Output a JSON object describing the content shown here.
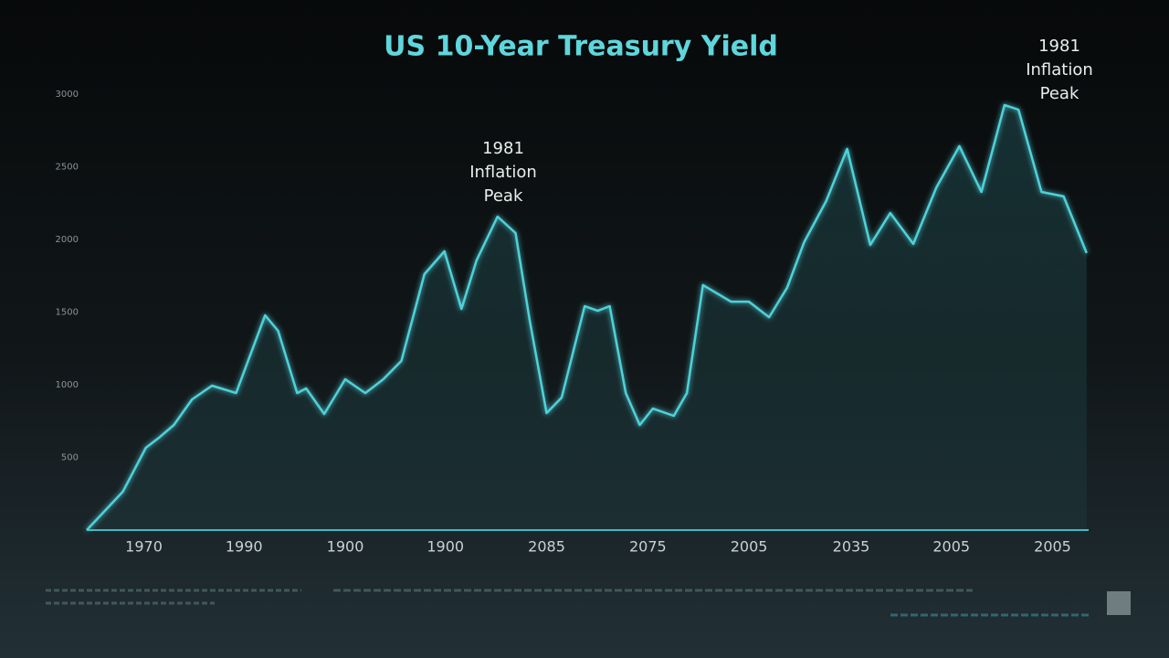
{
  "chart_data": {
    "type": "line",
    "title": "US 10-Year Treasury Yield",
    "annotations": [
      "1981 Inflation Peak",
      "1981 Inflation Peak"
    ],
    "xlim": [
      0,
      100
    ],
    "xticks": [
      {
        "value": 5.7,
        "label": "1970"
      },
      {
        "value": 15.7,
        "label": "1990"
      },
      {
        "value": 25.8,
        "label": "1900"
      },
      {
        "value": 35.8,
        "label": "1900"
      },
      {
        "value": 45.9,
        "label": "2085"
      },
      {
        "value": 56.0,
        "label": "2075"
      },
      {
        "value": 66.1,
        "label": "2005"
      },
      {
        "value": 76.3,
        "label": "2035"
      },
      {
        "value": 86.3,
        "label": "2005"
      },
      {
        "value": 96.4,
        "label": "2005"
      }
    ],
    "ylim": [
      0,
      3000
    ],
    "yticks": [
      500,
      1000,
      1500,
      2000,
      2500,
      3000
    ],
    "grid": false,
    "x": [
      0,
      3.6,
      5.9,
      7.3,
      8.7,
      10.5,
      12.5,
      14.9,
      16.1,
      17.8,
      19.1,
      21.0,
      21.9,
      23.7,
      25.8,
      27.8,
      29.6,
      31.4,
      33.7,
      35.7,
      37.4,
      38.9,
      41.0,
      42.8,
      44.2,
      45.9,
      47.4,
      49.7,
      51.0,
      52.2,
      53.8,
      55.2,
      56.5,
      58.6,
      59.9,
      61.5,
      64.3,
      66.1,
      68.1,
      69.9,
      71.6,
      73.8,
      75.9,
      78.2,
      80.2,
      82.5,
      84.8,
      87.1,
      89.3,
      91.6,
      93.0,
      95.3,
      97.5,
      99.8
    ],
    "series": [
      {
        "color": "#4fd1d9",
        "values": [
          0,
          264,
          566,
          641,
          723,
          899,
          994,
          943,
          1164,
          1478,
          1371,
          943,
          975,
          799,
          1038,
          943,
          1038,
          1164,
          1761,
          1918,
          1522,
          1855,
          2157,
          2044,
          1447,
          805,
          912,
          1541,
          1509,
          1541,
          943,
          723,
          836,
          786,
          943,
          1686,
          1572,
          1572,
          1465,
          1667,
          1981,
          2264,
          2623,
          1962,
          2182,
          1969,
          2358,
          2642,
          2327,
          2925,
          2893,
          2327,
          2296,
          1906
        ]
      }
    ]
  }
}
